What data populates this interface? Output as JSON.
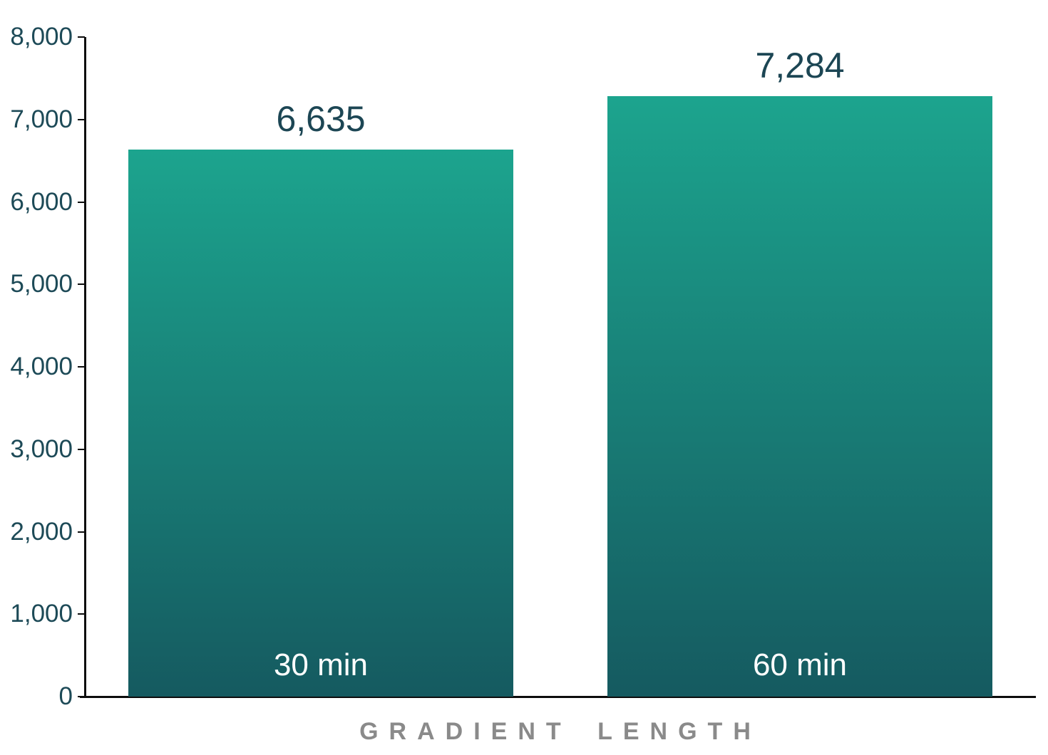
{
  "chart_data": {
    "type": "bar",
    "categories": [
      "30 min",
      "60 min"
    ],
    "values": [
      6635,
      7284
    ],
    "value_labels": [
      "6,635",
      "7,284"
    ],
    "xlabel": "GRADIENT LENGTH",
    "ylabel": "",
    "ylim": [
      0,
      8000
    ],
    "ytick_interval": 1000,
    "ytick_values": [
      0,
      1000,
      2000,
      3000,
      4000,
      5000,
      6000,
      7000,
      8000
    ],
    "ytick_labels": [
      "0",
      "1,000",
      "2,000",
      "3,000",
      "4,000",
      "5,000",
      "6,000",
      "7,000",
      "8,000"
    ],
    "grid": false,
    "legend_position": "none",
    "colors": {
      "bar_gradient_top": "#1ca48e",
      "bar_gradient_bottom": "#155a60",
      "axis_line": "#0d0d0d",
      "tick_label": "#1d4a57",
      "value_label": "#1c4654",
      "category_label": "#ffffff",
      "xlabel_color": "#8a8a8a"
    }
  }
}
